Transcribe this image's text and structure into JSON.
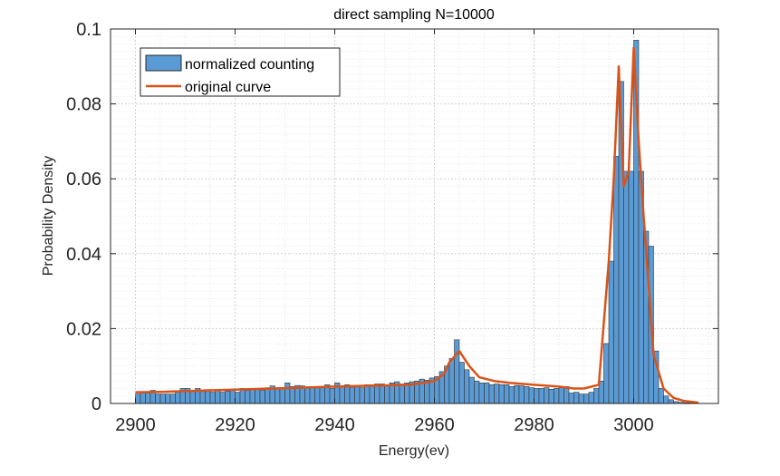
{
  "chart_data": {
    "type": "bar",
    "title": "direct sampling N=10000",
    "xlabel": "Energy(ev)",
    "ylabel": "Probability Density",
    "xlim": [
      2895,
      3017
    ],
    "ylim": [
      0,
      0.1
    ],
    "xticks": [
      2900,
      2920,
      2940,
      2960,
      2980,
      3000
    ],
    "yticks": [
      0,
      0.02,
      0.04,
      0.06,
      0.08,
      0.1
    ],
    "xtick_labels": [
      "2900",
      "2920",
      "2940",
      "2960",
      "2980",
      "3000"
    ],
    "ytick_labels": [
      "0",
      "0.02",
      "0.04",
      "0.06",
      "0.08",
      "0.1"
    ],
    "grid": true,
    "minor_grid": true,
    "legend_position": "top-left",
    "histogram": {
      "name": "normalized counting",
      "bin_start": 2900,
      "bin_width": 1,
      "values": [
        0.0025,
        0.003,
        0.0028,
        0.0035,
        0.0025,
        0.0025,
        0.0025,
        0.0025,
        0.003,
        0.004,
        0.004,
        0.0035,
        0.004,
        0.0032,
        0.0037,
        0.003,
        0.0035,
        0.003,
        0.0033,
        0.0035,
        0.003,
        0.004,
        0.0035,
        0.004,
        0.0038,
        0.0035,
        0.0042,
        0.0047,
        0.0042,
        0.004,
        0.0055,
        0.0045,
        0.0048,
        0.0047,
        0.0042,
        0.0045,
        0.0045,
        0.0045,
        0.005,
        0.004,
        0.0055,
        0.0045,
        0.005,
        0.0042,
        0.0047,
        0.0042,
        0.005,
        0.005,
        0.0052,
        0.0052,
        0.0048,
        0.0055,
        0.0058,
        0.0052,
        0.0055,
        0.0058,
        0.006,
        0.0065,
        0.0062,
        0.0068,
        0.0072,
        0.0085,
        0.01,
        0.012,
        0.017,
        0.011,
        0.009,
        0.007,
        0.006,
        0.0055,
        0.0055,
        0.005,
        0.0052,
        0.005,
        0.005,
        0.0045,
        0.0048,
        0.0047,
        0.0045,
        0.0042,
        0.004,
        0.004,
        0.0042,
        0.0038,
        0.004,
        0.0042,
        0.0045,
        0.0028,
        0.003,
        0.0025,
        0.0025,
        0.003,
        0.004,
        0.006,
        0.016,
        0.038,
        0.066,
        0.086,
        0.062,
        0.062,
        0.097,
        0.062,
        0.046,
        0.042,
        0.014,
        0.004,
        0.002,
        0.001,
        0.0005,
        0.0003,
        0.0002,
        0.0002,
        0.0001
      ]
    },
    "series": [
      {
        "name": "original curve",
        "color": "#D95319",
        "x": [
          2900,
          2905,
          2910,
          2915,
          2920,
          2925,
          2930,
          2935,
          2940,
          2945,
          2950,
          2955,
          2960,
          2962,
          2963,
          2965,
          2967,
          2969,
          2972,
          2975,
          2980,
          2985,
          2988,
          2990,
          2993,
          2995,
          2996,
          2997,
          2998,
          2999,
          3000,
          3001,
          3002,
          3004,
          3006,
          3008,
          3010,
          3013
        ],
        "y": [
          0.003,
          0.0031,
          0.0033,
          0.0035,
          0.0037,
          0.0039,
          0.0041,
          0.0043,
          0.0045,
          0.0047,
          0.0048,
          0.005,
          0.006,
          0.008,
          0.011,
          0.014,
          0.01,
          0.007,
          0.006,
          0.0055,
          0.005,
          0.0045,
          0.004,
          0.004,
          0.005,
          0.038,
          0.06,
          0.09,
          0.058,
          0.062,
          0.095,
          0.07,
          0.05,
          0.013,
          0.004,
          0.0015,
          0.0007,
          0.0002
        ]
      }
    ],
    "bar_color": "#5B9BD5",
    "bar_edge_color": "#333333",
    "curve_color": "#D95319"
  }
}
